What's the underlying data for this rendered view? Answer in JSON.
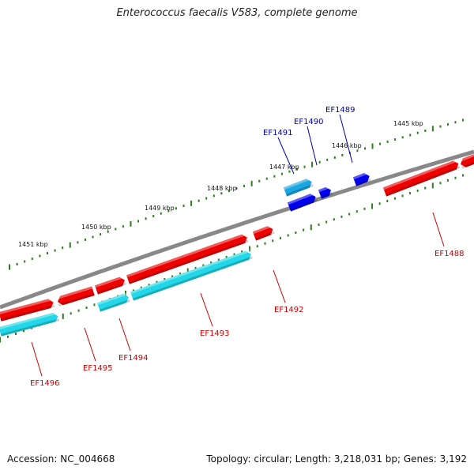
{
  "title": "Enterococcus faecalis V583, complete genome",
  "footer": {
    "accession": "Accession: NC_004668",
    "summary": "Topology: circular; Length: 3,218,031 bp; Genes: 3,192"
  },
  "colors": {
    "backbone": "#888888",
    "tick": "#2e7d1f",
    "forward_cds": "#ee0000",
    "reverse_cds": "#22d8e8",
    "highlight_cds": "#0000ee",
    "highlight_cds_light": "#1aa6e0",
    "label_red": "#cc0000",
    "label_blue": "#0000aa"
  },
  "scale_labels": [
    "1445 kbp",
    "1446 kbp",
    "1447 kbp",
    "1448 kbp",
    "1449 kbp",
    "1450 kbp",
    "1451 kbp"
  ],
  "genes": [
    {
      "name": "EF1488",
      "color": "label_red"
    },
    {
      "name": "EF1489",
      "color": "label_blue"
    },
    {
      "name": "EF1490",
      "color": "label_blue"
    },
    {
      "name": "EF1491",
      "color": "label_blue"
    },
    {
      "name": "EF1492",
      "color": "label_red"
    },
    {
      "name": "EF1493",
      "color": "label_red"
    },
    {
      "name": "EF1494",
      "color": "label_red"
    },
    {
      "name": "EF1495",
      "color": "label_red"
    },
    {
      "name": "EF1496",
      "color": "label_red"
    }
  ]
}
